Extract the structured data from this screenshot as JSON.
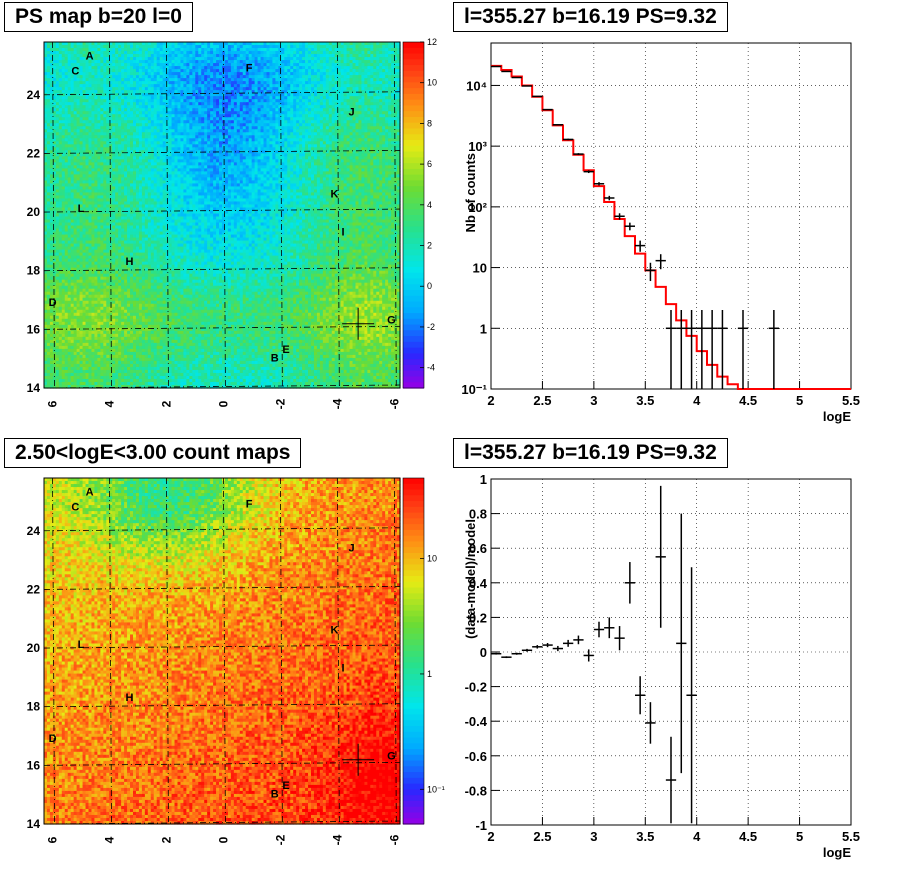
{
  "panels": {
    "ps_map": {
      "title": "PS map b=20 l=0"
    },
    "count_map": {
      "title": "2.50<logE<3.00 count maps"
    },
    "spectrum": {
      "title": "l=355.27 b=16.19 PS=9.32"
    },
    "residual": {
      "title": "l=355.27 b=16.19 PS=9.32"
    }
  },
  "chart_data": [
    {
      "id": "ps_map",
      "type": "heatmap",
      "title": "PS map b=20 l=0",
      "x_ticks": [
        "6",
        "4",
        "2",
        "0",
        "-2",
        "-4",
        "-6"
      ],
      "y_ticks": [
        "14",
        "16",
        "18",
        "20",
        "22",
        "24"
      ],
      "xlim": [
        6.3,
        -6.2
      ],
      "ylim": [
        14,
        25.8
      ],
      "colorbar": {
        "ticks": [
          "12",
          "10",
          "8",
          "6",
          "4",
          "2",
          "0",
          "-2",
          "-4"
        ],
        "range": [
          -5,
          12
        ],
        "scale": "linear"
      },
      "source_labels": [
        {
          "name": "A",
          "l": 4.7,
          "b": 25.2
        },
        {
          "name": "C",
          "l": 5.2,
          "b": 24.7
        },
        {
          "name": "F",
          "l": -0.9,
          "b": 24.8
        },
        {
          "name": "J",
          "l": -4.5,
          "b": 23.3
        },
        {
          "name": "K",
          "l": -3.9,
          "b": 20.5
        },
        {
          "name": "L",
          "l": 5.0,
          "b": 20.0
        },
        {
          "name": "I",
          "l": -4.2,
          "b": 19.2
        },
        {
          "name": "H",
          "l": 3.3,
          "b": 18.2
        },
        {
          "name": "D",
          "l": 6.0,
          "b": 16.8
        },
        {
          "name": "G",
          "l": -5.9,
          "b": 16.2
        },
        {
          "name": "E",
          "l": -2.2,
          "b": 15.2
        },
        {
          "name": "B",
          "l": -1.8,
          "b": 14.9
        }
      ],
      "ps_position": {
        "l": -4.73,
        "b": 16.19
      }
    },
    {
      "id": "spectrum",
      "type": "line",
      "title": "l=355.27 b=16.19 PS=9.32",
      "xlabel": "logE",
      "ylabel": "Nb of counts",
      "xlim": [
        2,
        5.5
      ],
      "ylim": [
        0.1,
        50000
      ],
      "yscale": "log",
      "x_ticks": [
        "2",
        "2.5",
        "3",
        "3.5",
        "4",
        "4.5",
        "5",
        "5.5"
      ],
      "y_ticks": [
        {
          "value": 0.1,
          "label": "10⁻¹"
        },
        {
          "value": 1,
          "label": "1"
        },
        {
          "value": 10,
          "label": "10"
        },
        {
          "value": 100,
          "label": "10²"
        },
        {
          "value": 1000,
          "label": "10³"
        },
        {
          "value": 10000,
          "label": "10⁴"
        }
      ],
      "grid": true,
      "model_color": "#ff0000",
      "model": {
        "bin_edges": [
          2.0,
          2.1,
          2.2,
          2.3,
          2.4,
          2.5,
          2.6,
          2.7,
          2.8,
          2.9,
          3.0,
          3.1,
          3.2,
          3.3,
          3.4,
          3.5,
          3.6,
          3.7,
          3.8,
          3.9,
          4.0,
          4.1,
          4.2,
          4.3,
          4.4,
          4.5,
          4.6,
          5.5
        ],
        "values": [
          21000,
          18000,
          14000,
          10000,
          6500,
          3900,
          2200,
          1250,
          720,
          400,
          220,
          120,
          63,
          33,
          17,
          9.0,
          4.8,
          2.5,
          1.35,
          0.75,
          0.42,
          0.25,
          0.16,
          0.12,
          0.1,
          0.1,
          0.1
        ]
      },
      "data": {
        "x": [
          2.05,
          2.15,
          2.25,
          2.35,
          2.45,
          2.55,
          2.65,
          2.75,
          2.85,
          2.95,
          3.05,
          3.15,
          3.25,
          3.35,
          3.45,
          3.55,
          3.65,
          3.75,
          3.85,
          3.95,
          4.05,
          4.15,
          4.25,
          4.45,
          4.75
        ],
        "y": [
          20500,
          17000,
          13500,
          9800,
          6600,
          4000,
          2250,
          1290,
          740,
          380,
          240,
          140,
          70,
          48,
          23,
          9,
          13,
          1,
          1,
          1,
          1,
          1,
          1,
          1,
          1
        ],
        "xerr": 0.05
      }
    },
    {
      "id": "count_map",
      "type": "heatmap",
      "title": "2.50<logE<3.00 count maps",
      "x_ticks": [
        "6",
        "4",
        "2",
        "0",
        "-2",
        "-4",
        "-6"
      ],
      "y_ticks": [
        "14",
        "16",
        "18",
        "20",
        "22",
        "24"
      ],
      "xlim": [
        6.3,
        -6.2
      ],
      "ylim": [
        14,
        25.8
      ],
      "colorbar": {
        "ticks": [
          "10",
          "1",
          "10⁻¹"
        ],
        "range": [
          0.05,
          50
        ],
        "scale": "log"
      }
    },
    {
      "id": "residual",
      "type": "scatter",
      "title": "l=355.27 b=16.19 PS=9.32",
      "xlabel": "logE",
      "ylabel": "(data-model)/model",
      "xlim": [
        2,
        5.5
      ],
      "ylim": [
        -1,
        1
      ],
      "x_ticks": [
        "2",
        "2.5",
        "3",
        "3.5",
        "4",
        "4.5",
        "5",
        "5.5"
      ],
      "y_ticks": [
        "-1",
        "-0.8",
        "-0.6",
        "-0.4",
        "-0.2",
        "0",
        "0.2",
        "0.4",
        "0.6",
        "0.8",
        "1"
      ],
      "grid": true,
      "data": {
        "x": [
          2.05,
          2.15,
          2.25,
          2.35,
          2.45,
          2.55,
          2.65,
          2.75,
          2.85,
          2.95,
          3.05,
          3.15,
          3.25,
          3.35,
          3.45,
          3.55,
          3.65,
          3.75,
          3.85,
          3.95
        ],
        "y": [
          -0.01,
          -0.03,
          -0.01,
          0.01,
          0.03,
          0.04,
          0.02,
          0.05,
          0.07,
          -0.02,
          0.13,
          0.14,
          0.08,
          0.4,
          -0.25,
          -0.41,
          0.55,
          -0.74,
          0.05,
          -0.25
        ],
        "yerr": [
          0.005,
          0.005,
          0.006,
          0.008,
          0.01,
          0.012,
          0.015,
          0.02,
          0.025,
          0.035,
          0.045,
          0.06,
          0.07,
          0.12,
          0.11,
          0.12,
          0.41,
          0.25,
          0.75,
          0.74
        ],
        "xerr": 0.05
      }
    }
  ]
}
